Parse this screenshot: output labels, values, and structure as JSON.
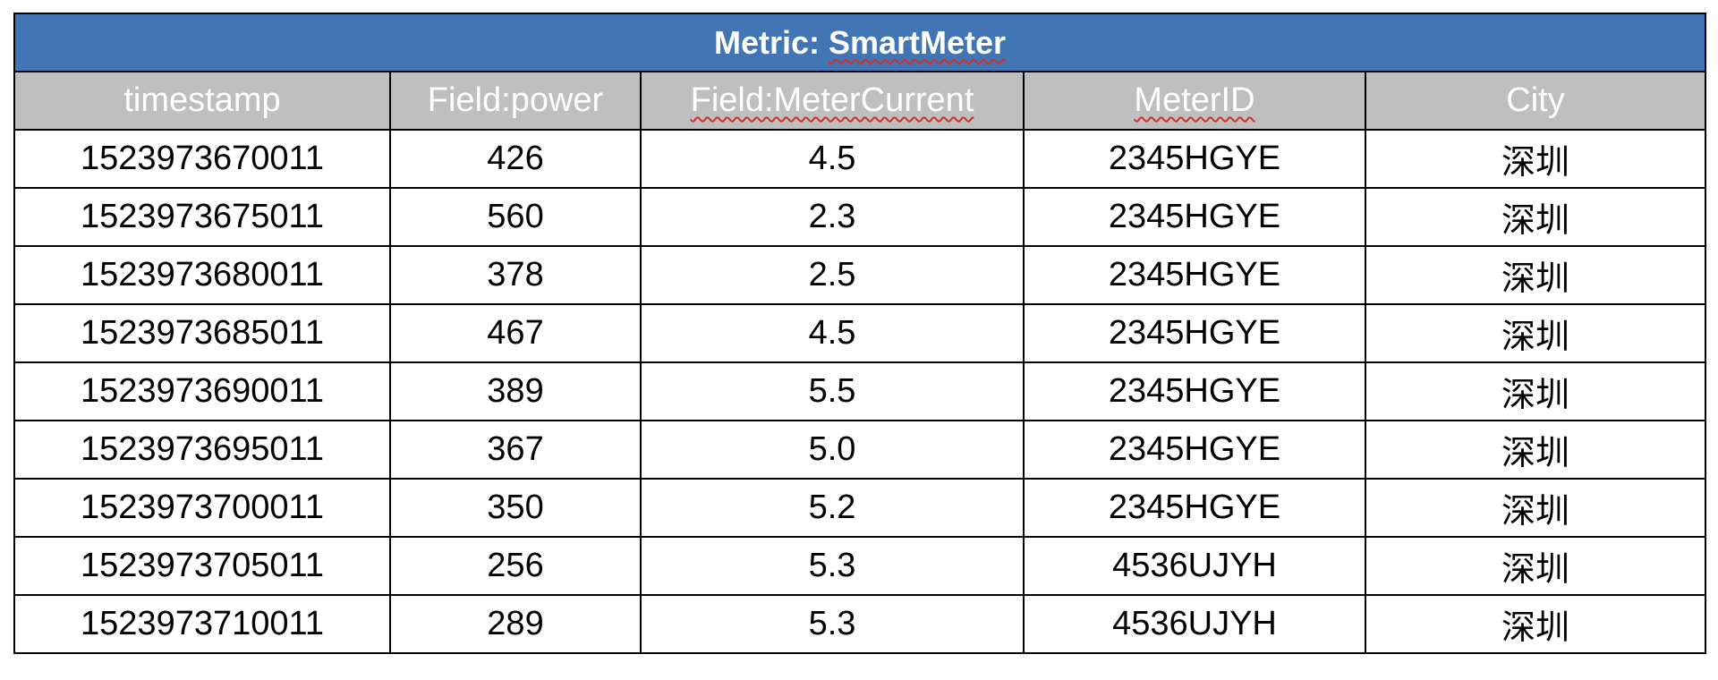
{
  "table": {
    "title_prefix": "Metric: ",
    "title_name": "SmartMeter",
    "headers": [
      "timestamp",
      "Field:power",
      "Field:MeterCurrent",
      "MeterID",
      "City"
    ],
    "rows": [
      [
        "1523973670011",
        "426",
        "4.5",
        "2345HGYE",
        "深圳"
      ],
      [
        "1523973675011",
        "560",
        "2.3",
        "2345HGYE",
        "深圳"
      ],
      [
        "1523973680011",
        "378",
        "2.5",
        "2345HGYE",
        "深圳"
      ],
      [
        "1523973685011",
        "467",
        "4.5",
        "2345HGYE",
        "深圳"
      ],
      [
        "1523973690011",
        "389",
        "5.5",
        "2345HGYE",
        "深圳"
      ],
      [
        "1523973695011",
        "367",
        "5.0",
        "2345HGYE",
        "深圳"
      ],
      [
        "1523973700011",
        "350",
        "5.2",
        "2345HGYE",
        "深圳"
      ],
      [
        "1523973705011",
        "256",
        "5.3",
        "4536UJYH",
        "深圳"
      ],
      [
        "1523973710011",
        "289",
        "5.3",
        "4536UJYH",
        "深圳"
      ]
    ]
  },
  "colors": {
    "title_background": "#4275b3",
    "header_background": "#bfbfbf",
    "spellcheck_underline": "#d0312d"
  }
}
